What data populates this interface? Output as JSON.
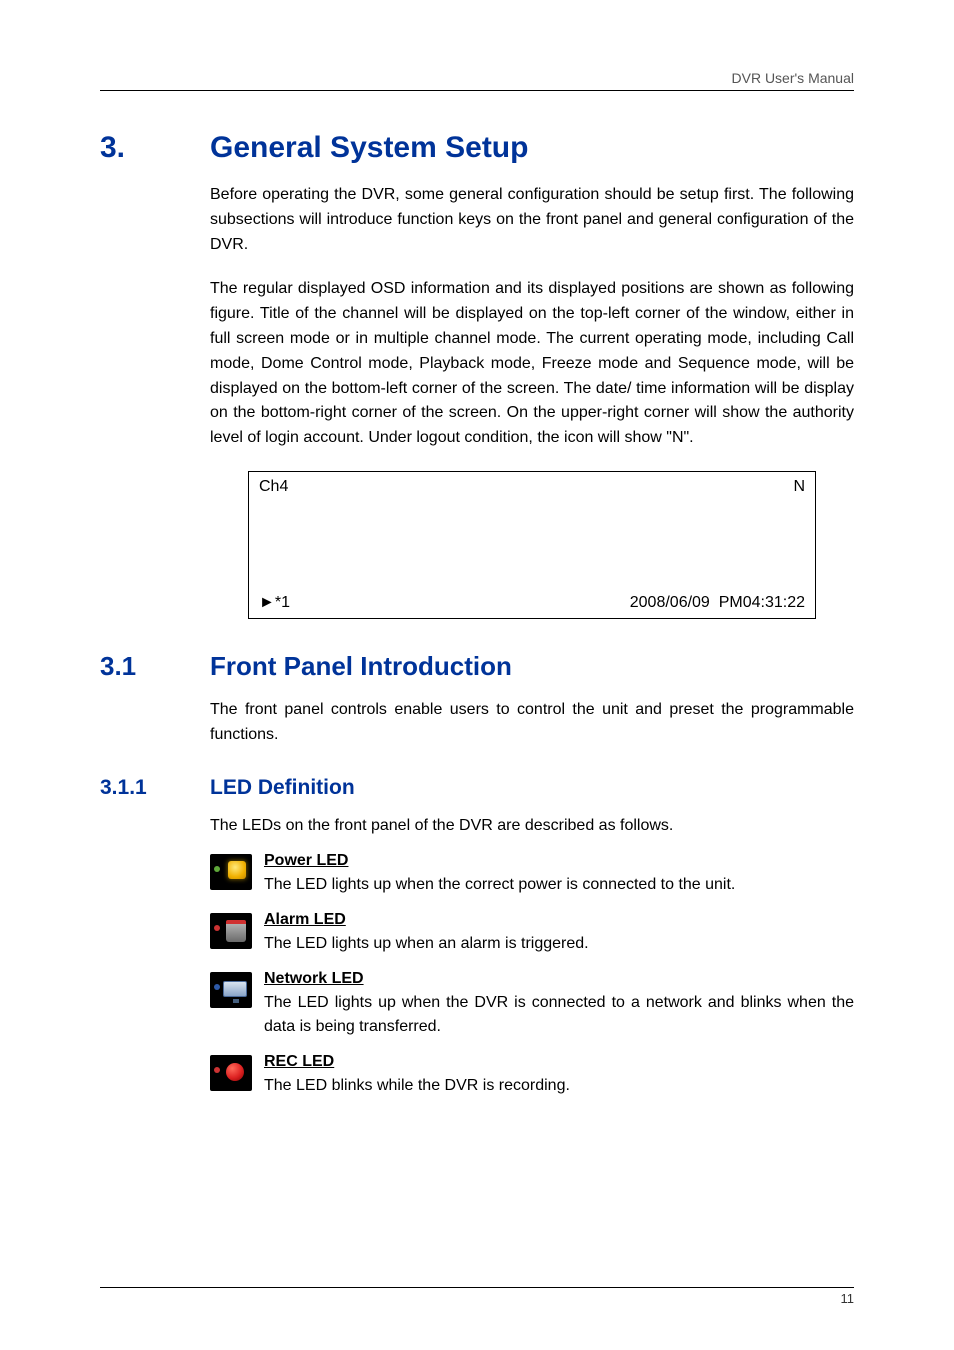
{
  "header": {
    "right": "DVR User's Manual"
  },
  "section3": {
    "num": "3.",
    "title": "General System Setup",
    "p1": "Before operating the DVR, some general configuration should be setup first. The following subsections will introduce function keys on the front panel and general configuration of the DVR.",
    "p2": "The regular displayed OSD information and its displayed positions are shown as following figure. Title of the channel will be displayed on the top-left corner of the window, either in full screen mode or in multiple channel mode. The current operating mode, including Call mode, Dome Control mode, Playback mode, Freeze mode and Sequence mode, will be displayed on the bottom-left corner of the screen. The date/ time information will be display on the bottom-right corner of the screen. On the upper-right corner will show the authority level of login account. Under logout condition, the icon will show \"N\"."
  },
  "osd": {
    "top_left": "Ch4",
    "top_right": "N",
    "bottom_left": "►*1",
    "bottom_right_date": "2008/06/09",
    "bottom_right_time": "PM04:31:22"
  },
  "section31": {
    "num": "3.1",
    "title": "Front Panel Introduction",
    "p1": "The front panel controls enable users to control the unit and preset the programmable functions."
  },
  "section311": {
    "num": "3.1.1",
    "title": "LED Definition",
    "p1": "The LEDs on the front panel of the DVR are described as follows."
  },
  "leds": {
    "power": {
      "title": "Power LED",
      "desc": "The LED lights up when the correct power is connected to the unit."
    },
    "alarm": {
      "title": "Alarm LED",
      "desc": "The LED lights up when an alarm is triggered."
    },
    "network": {
      "title": "Network LED",
      "desc": "The LED lights up when the DVR is connected to a network and blinks when the data is being transferred."
    },
    "rec": {
      "title": "REC LED",
      "desc": "The LED blinks while the DVR is recording."
    }
  },
  "colors": {
    "heading": "#003399",
    "body": "#000000",
    "header_text": "#555555"
  },
  "page_number": "11"
}
